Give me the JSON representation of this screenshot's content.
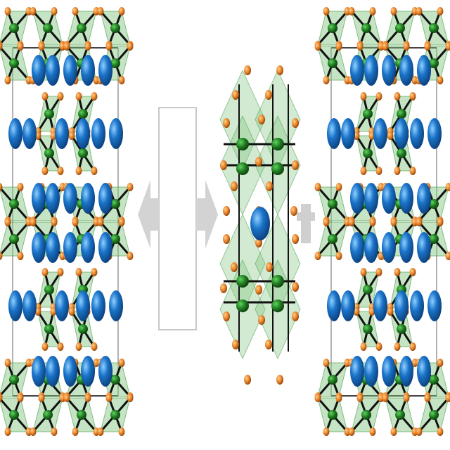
{
  "figure": {
    "panels": [
      {
        "id": "left",
        "description_free": true
      },
      {
        "id": "center",
        "description_free": true
      },
      {
        "id": "right",
        "description_free": true
      }
    ]
  },
  "colors": {
    "background": "#ffffff",
    "octahedron_fill": "#7cc47c",
    "octahedron_edge": "#4a9a4a",
    "metal_atom": "#1f7a1f",
    "metal_highlight": "#5fd35f",
    "halide_atom": "#e8822a",
    "halide_highlight": "#ffd08a",
    "cation_atom": "#1a73c9",
    "cation_highlight": "#8fd0ff",
    "bond": "#111111",
    "arrow": "#d3d3d3",
    "frame": "#c8c8c8",
    "plus": "#cfcfcf"
  },
  "icons": [
    "arrow-left-icon",
    "arrow-right-icon",
    "plus-icon"
  ]
}
